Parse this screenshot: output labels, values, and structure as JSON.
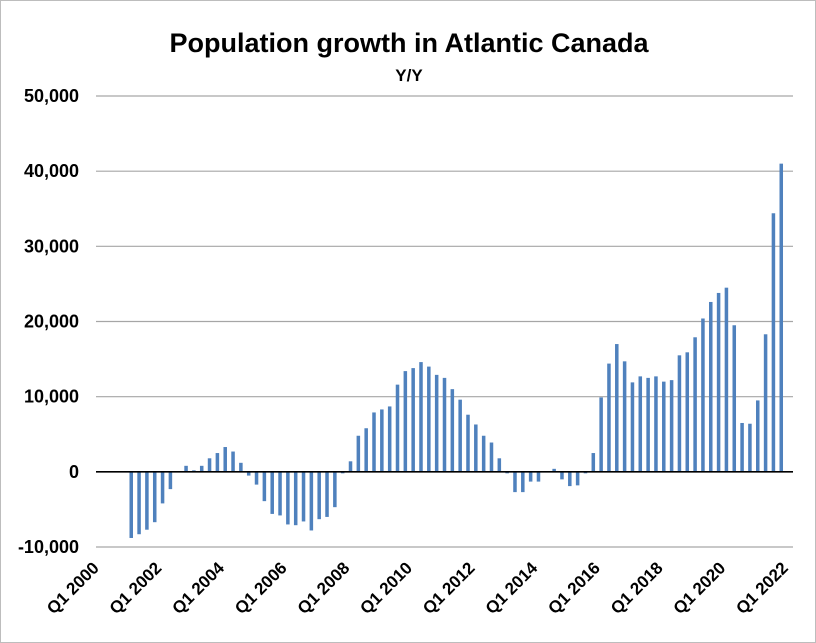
{
  "chart_data": {
    "type": "bar",
    "title": "Population growth in Atlantic Canada",
    "subtitle": "Y/Y",
    "xlabel": "",
    "ylabel": "",
    "ylim": [
      -10000,
      50000
    ],
    "y_ticks": [
      50000,
      40000,
      30000,
      20000,
      10000,
      0,
      -10000
    ],
    "y_tick_labels": [
      "50,000",
      "40,000",
      "30,000",
      "20,000",
      "10,000",
      "0",
      "-10,000"
    ],
    "x_tick_labels": [
      "Q1 2000",
      "Q1 2002",
      "Q1 2004",
      "Q1 2006",
      "Q1 2008",
      "Q1 2010",
      "Q1 2012",
      "Q1 2014",
      "Q1 2016",
      "Q1 2018",
      "Q1 2020",
      "Q1 2022"
    ],
    "bar_color": "#4f81bd",
    "series": [
      {
        "name": "Population growth Y/Y",
        "categories": [
          "Q1 2000",
          "Q2 2000",
          "Q3 2000",
          "Q4 2000",
          "Q1 2001",
          "Q2 2001",
          "Q3 2001",
          "Q4 2001",
          "Q1 2002",
          "Q2 2002",
          "Q3 2002",
          "Q4 2002",
          "Q1 2003",
          "Q2 2003",
          "Q3 2003",
          "Q4 2003",
          "Q1 2004",
          "Q2 2004",
          "Q3 2004",
          "Q4 2004",
          "Q1 2005",
          "Q2 2005",
          "Q3 2005",
          "Q4 2005",
          "Q1 2006",
          "Q2 2006",
          "Q3 2006",
          "Q4 2006",
          "Q1 2007",
          "Q2 2007",
          "Q3 2007",
          "Q4 2007",
          "Q1 2008",
          "Q2 2008",
          "Q3 2008",
          "Q4 2008",
          "Q1 2009",
          "Q2 2009",
          "Q3 2009",
          "Q4 2009",
          "Q1 2010",
          "Q2 2010",
          "Q3 2010",
          "Q4 2010",
          "Q1 2011",
          "Q2 2011",
          "Q3 2011",
          "Q4 2011",
          "Q1 2012",
          "Q2 2012",
          "Q3 2012",
          "Q4 2012",
          "Q1 2013",
          "Q2 2013",
          "Q3 2013",
          "Q4 2013",
          "Q1 2014",
          "Q2 2014",
          "Q3 2014",
          "Q4 2014",
          "Q1 2015",
          "Q2 2015",
          "Q3 2015",
          "Q4 2015",
          "Q1 2016",
          "Q2 2016",
          "Q3 2016",
          "Q4 2016",
          "Q1 2017",
          "Q2 2017",
          "Q3 2017",
          "Q4 2017",
          "Q1 2018",
          "Q2 2018",
          "Q3 2018",
          "Q4 2018",
          "Q1 2019",
          "Q2 2019",
          "Q3 2019",
          "Q4 2019",
          "Q1 2020",
          "Q2 2020",
          "Q3 2020",
          "Q4 2020",
          "Q1 2021",
          "Q2 2021",
          "Q3 2021",
          "Q4 2021",
          "Q1 2022"
        ],
        "values": [
          0,
          0,
          0,
          0,
          -8800,
          -8300,
          -7700,
          -6700,
          -4200,
          -2300,
          0,
          800,
          200,
          800,
          1800,
          2500,
          3300,
          2700,
          1200,
          -500,
          -1700,
          -3900,
          -5600,
          -5800,
          -7000,
          -7100,
          -6600,
          -7800,
          -6300,
          -6000,
          -4700,
          -200,
          1400,
          4800,
          5800,
          7900,
          8300,
          8700,
          11600,
          13400,
          13800,
          14600,
          14000,
          12900,
          12500,
          11000,
          9600,
          7600,
          6300,
          4800,
          3900,
          1800,
          -200,
          -2700,
          -2700,
          -1300,
          -1300,
          0,
          400,
          -1000,
          -1900,
          -1800,
          -200,
          2500,
          9900,
          14400,
          17000,
          14700,
          11900,
          12700,
          12500,
          12700,
          12000,
          12200,
          15500,
          15900,
          17900,
          20400,
          22600,
          23800,
          24500,
          19500,
          6500,
          6400,
          9500,
          18300,
          34400,
          41000,
          0
        ]
      }
    ]
  }
}
